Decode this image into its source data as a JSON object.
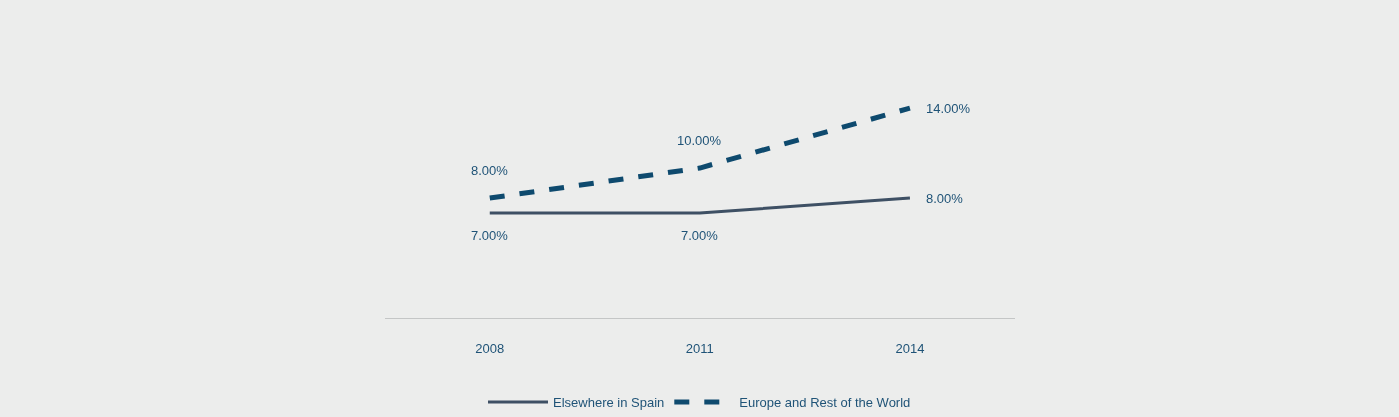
{
  "chart_data": {
    "type": "line",
    "categories": [
      "2008",
      "2011",
      "2014"
    ],
    "tick_labels": "x",
    "grid": false,
    "legend": "bottom",
    "marker": "none",
    "series": [
      {
        "name": "Elsewhere in Spain",
        "color": "#3e5064",
        "line_style": "solid",
        "values": [
          7,
          7,
          8
        ],
        "value_labels": [
          "7.00%",
          "7.00%",
          "8.00%"
        ]
      },
      {
        "name": "Europe and Rest of the World",
        "color": "#0e4a6e",
        "line_style": "dashed",
        "values": [
          8,
          10,
          14
        ],
        "value_labels": [
          "8.00%",
          "10.00%",
          "14.00%"
        ]
      }
    ]
  }
}
